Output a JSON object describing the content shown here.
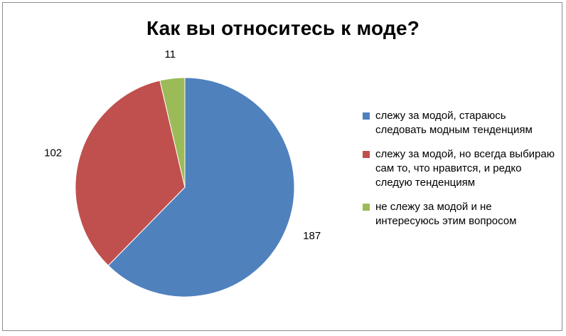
{
  "chart_data": {
    "type": "pie",
    "title": "Как вы относитесь к моде?",
    "slices": [
      {
        "label": "слежу за модой, стараюсь следовать модным тенденциям",
        "value": 187,
        "color": "#4F81BD"
      },
      {
        "label": "слежу за модой, но всегда выбираю сам то, что нравится, и редко следую тенденциям",
        "value": 102,
        "color": "#C0504D"
      },
      {
        "label": "не слежу за модой и не интересуюсь этим вопросом",
        "value": 11,
        "color": "#9BBB59"
      }
    ],
    "legend_position": "right",
    "data_labels": true
  }
}
